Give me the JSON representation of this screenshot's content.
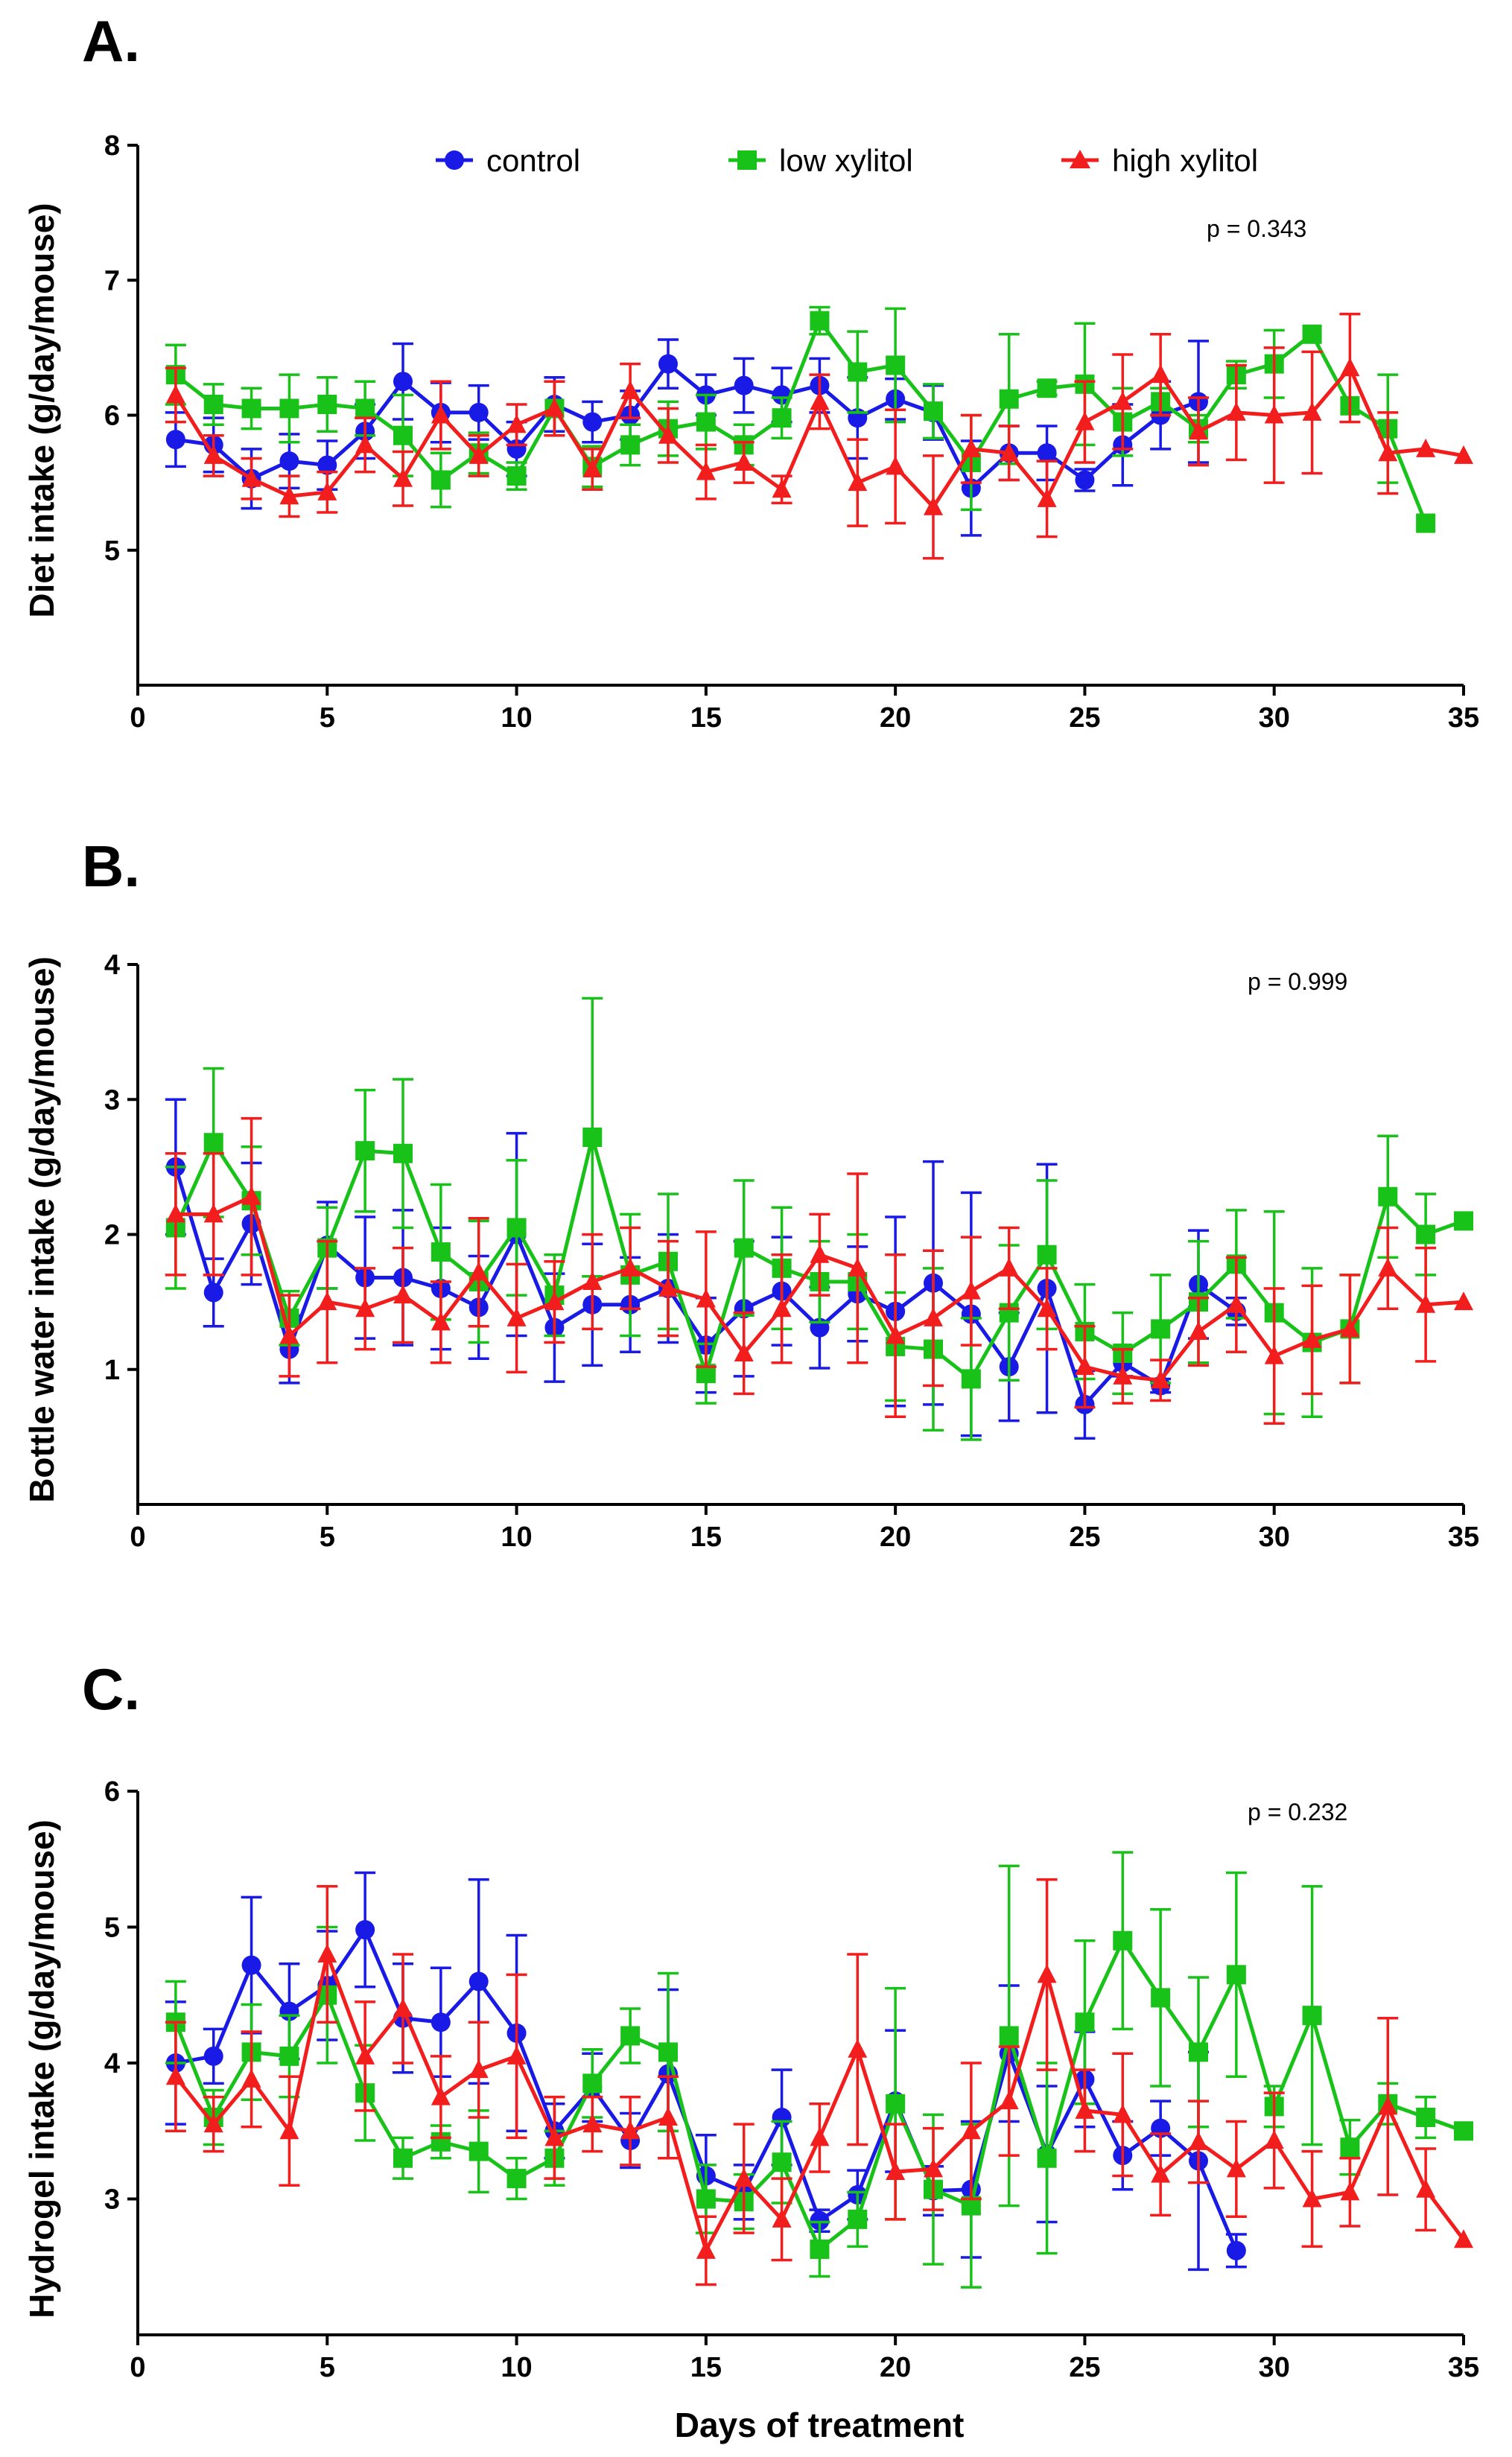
{
  "figure": {
    "xlabel": "Days of treatment",
    "xticks": [
      0,
      5,
      10,
      15,
      20,
      25,
      30,
      35
    ],
    "legend": [
      {
        "name": "control",
        "color": "#1a1ae6",
        "marker": "circle"
      },
      {
        "name": "low xylitol",
        "color": "#19c219",
        "marker": "square"
      },
      {
        "name": "high xylitol",
        "color": "#f21d1d",
        "marker": "triangle"
      }
    ]
  },
  "chart_data": [
    {
      "type": "line",
      "panel": "A.",
      "ylabel": "Diet intake (g/day/mouse)",
      "p_value": "p = 0.343",
      "xlim": [
        0,
        35
      ],
      "ylim": [
        4,
        8
      ],
      "yticks": [
        5,
        6,
        7,
        8
      ],
      "series": [
        {
          "name": "control",
          "x": [
            1,
            2,
            3,
            4,
            5,
            6,
            7,
            8,
            9,
            10,
            11,
            12,
            13,
            14,
            15,
            16,
            17,
            18,
            19,
            20,
            21,
            22,
            23,
            24,
            25,
            26,
            27,
            28
          ],
          "y": [
            5.82,
            5.78,
            5.53,
            5.66,
            5.63,
            5.88,
            6.25,
            6.02,
            6.02,
            5.75,
            6.08,
            5.95,
            6.0,
            6.38,
            6.15,
            6.22,
            6.15,
            6.22,
            5.98,
            6.12,
            6.02,
            5.46,
            5.72,
            5.72,
            5.52,
            5.78,
            6.0,
            6.1
          ],
          "err": [
            0.2,
            0.2,
            0.22,
            0.2,
            0.18,
            0.2,
            0.28,
            0.22,
            0.2,
            0.2,
            0.2,
            0.15,
            0.18,
            0.18,
            0.15,
            0.2,
            0.2,
            0.2,
            0.3,
            0.15,
            0.2,
            0.35,
            0.2,
            0.2,
            0.08,
            0.3,
            0.25,
            0.45
          ]
        },
        {
          "name": "low xylitol",
          "x": [
            1,
            2,
            3,
            4,
            5,
            6,
            7,
            8,
            9,
            10,
            11,
            12,
            13,
            14,
            15,
            16,
            17,
            18,
            19,
            20,
            21,
            22,
            23,
            24,
            25,
            26,
            27,
            28,
            29,
            30,
            31,
            32,
            33,
            34
          ],
          "y": [
            6.3,
            6.08,
            6.05,
            6.05,
            6.08,
            6.05,
            5.85,
            5.52,
            5.72,
            5.55,
            6.05,
            5.62,
            5.78,
            5.9,
            5.95,
            5.78,
            5.98,
            6.7,
            6.32,
            6.37,
            6.03,
            5.65,
            6.12,
            6.2,
            6.23,
            5.95,
            6.1,
            5.9,
            6.3,
            6.38,
            6.6,
            6.07,
            5.9,
            5.2
          ],
          "err": [
            0.22,
            0.15,
            0.15,
            0.25,
            0.2,
            0.2,
            0.3,
            0.2,
            0.15,
            0.1,
            0.2,
            0.15,
            0.15,
            0.2,
            0.2,
            0.15,
            0.15,
            0.1,
            0.3,
            0.42,
            0.2,
            0.35,
            0.48,
            0.05,
            0.45,
            0.25,
            0.1,
            0.1,
            0.1,
            0.25,
            0.0,
            0.0,
            0.4,
            0.0
          ]
        },
        {
          "name": "high xylitol",
          "x": [
            1,
            2,
            3,
            4,
            5,
            6,
            7,
            8,
            9,
            10,
            11,
            12,
            13,
            14,
            15,
            16,
            17,
            18,
            19,
            20,
            21,
            22,
            23,
            24,
            25,
            26,
            27,
            28,
            29,
            30,
            31,
            32,
            33,
            34,
            35
          ],
          "y": [
            6.15,
            5.7,
            5.53,
            5.4,
            5.43,
            5.78,
            5.53,
            6.0,
            5.7,
            5.93,
            6.05,
            5.6,
            6.18,
            5.85,
            5.58,
            5.65,
            5.45,
            6.1,
            5.5,
            5.62,
            5.32,
            5.75,
            5.72,
            5.38,
            5.95,
            6.1,
            6.3,
            5.88,
            6.02,
            6.0,
            6.02,
            6.35,
            5.72,
            5.75,
            5.7
          ],
          "err": [
            0.2,
            0.15,
            0.15,
            0.15,
            0.15,
            0.2,
            0.2,
            0.25,
            0.15,
            0.15,
            0.2,
            0.15,
            0.2,
            0.2,
            0.2,
            0.15,
            0.1,
            0.2,
            0.32,
            0.42,
            0.38,
            0.25,
            0.2,
            0.28,
            0.3,
            0.35,
            0.3,
            0.25,
            0.35,
            0.5,
            0.45,
            0.4,
            0.3,
            0.0,
            0.0
          ]
        }
      ]
    },
    {
      "type": "line",
      "panel": "B.",
      "ylabel": "Bottle water intake (g/day/mouse)",
      "p_value": "p = 0.999",
      "xlim": [
        0,
        35
      ],
      "ylim": [
        0,
        4
      ],
      "yticks": [
        1,
        2,
        3,
        4
      ],
      "series": [
        {
          "name": "control",
          "x": [
            1,
            2,
            3,
            4,
            5,
            6,
            7,
            8,
            9,
            10,
            11,
            12,
            13,
            14,
            15,
            16,
            17,
            18,
            19,
            20,
            21,
            22,
            23,
            24,
            25,
            26,
            27,
            28,
            29
          ],
          "y": [
            2.5,
            1.57,
            2.08,
            1.15,
            1.92,
            1.68,
            1.68,
            1.6,
            1.46,
            2.0,
            1.31,
            1.48,
            1.48,
            1.6,
            1.18,
            1.45,
            1.58,
            1.31,
            1.56,
            1.43,
            1.64,
            1.41,
            1.02,
            1.6,
            0.74,
            1.05,
            0.88,
            1.63,
            1.43
          ],
          "err": [
            0.5,
            0.25,
            0.45,
            0.25,
            0.32,
            0.45,
            0.5,
            0.45,
            0.38,
            0.75,
            0.4,
            0.45,
            0.35,
            0.4,
            0.35,
            0.5,
            0.4,
            0.3,
            0.35,
            0.7,
            0.9,
            0.9,
            0.4,
            0.92,
            0.25,
            0.1,
            0.05,
            0.4,
            0.1
          ]
        },
        {
          "name": "low xylitol",
          "x": [
            1,
            2,
            3,
            4,
            5,
            6,
            7,
            8,
            9,
            10,
            11,
            12,
            13,
            14,
            15,
            16,
            17,
            18,
            19,
            20,
            21,
            22,
            23,
            24,
            25,
            26,
            27,
            28,
            29,
            30,
            31,
            32,
            33,
            34,
            35
          ],
          "y": [
            2.05,
            2.68,
            2.25,
            1.38,
            1.9,
            2.62,
            2.6,
            1.87,
            1.65,
            2.05,
            1.55,
            2.72,
            1.7,
            1.8,
            0.97,
            1.9,
            1.75,
            1.65,
            1.65,
            1.17,
            1.15,
            0.93,
            1.42,
            1.85,
            1.28,
            1.12,
            1.3,
            1.5,
            1.78,
            1.42,
            1.2,
            1.3,
            2.28,
            2.0,
            2.1
          ],
          "err": [
            0.45,
            0.55,
            0.4,
            0.2,
            0.3,
            0.45,
            0.55,
            0.5,
            0.45,
            0.5,
            0.3,
            1.03,
            0.45,
            0.5,
            0.22,
            0.5,
            0.45,
            0.3,
            0.35,
            0.4,
            0.6,
            0.45,
            0.5,
            0.55,
            0.35,
            0.3,
            0.4,
            0.45,
            0.4,
            0.75,
            0.55,
            0.4,
            0.45,
            0.3,
            0.0
          ]
        },
        {
          "name": "high xylitol",
          "x": [
            1,
            2,
            3,
            4,
            5,
            6,
            7,
            8,
            9,
            10,
            11,
            12,
            13,
            14,
            15,
            16,
            17,
            18,
            19,
            20,
            21,
            22,
            23,
            24,
            25,
            26,
            27,
            28,
            29,
            30,
            31,
            32,
            33,
            34,
            35
          ],
          "y": [
            2.15,
            2.15,
            2.28,
            1.25,
            1.5,
            1.45,
            1.55,
            1.35,
            1.72,
            1.38,
            1.5,
            1.65,
            1.75,
            1.6,
            1.52,
            1.12,
            1.45,
            1.85,
            1.75,
            1.25,
            1.38,
            1.58,
            1.75,
            1.45,
            1.02,
            0.95,
            0.92,
            1.28,
            1.48,
            1.1,
            1.22,
            1.3,
            1.75,
            1.48,
            1.5
          ],
          "err": [
            0.45,
            0.45,
            0.58,
            0.3,
            0.45,
            0.3,
            0.35,
            0.3,
            0.4,
            0.4,
            0.3,
            0.35,
            0.3,
            0.35,
            0.5,
            0.3,
            0.4,
            0.3,
            0.7,
            0.6,
            0.5,
            0.4,
            0.3,
            0.3,
            0.3,
            0.2,
            0.15,
            0.25,
            0.35,
            0.5,
            0.4,
            0.4,
            0.3,
            0.42,
            0.0
          ]
        }
      ]
    },
    {
      "type": "line",
      "panel": "C.",
      "ylabel": "Hydrogel intake (g/day/mouse)",
      "p_value": "p = 0.232",
      "xlim": [
        0,
        35
      ],
      "ylim": [
        2,
        6
      ],
      "yticks": [
        3,
        4,
        5,
        6
      ],
      "series": [
        {
          "name": "control",
          "x": [
            1,
            2,
            3,
            4,
            5,
            6,
            7,
            8,
            9,
            10,
            11,
            12,
            13,
            14,
            15,
            16,
            17,
            18,
            19,
            20,
            21,
            22,
            23,
            24,
            25,
            26,
            27,
            28,
            29
          ],
          "y": [
            4.0,
            4.05,
            4.72,
            4.38,
            4.57,
            4.98,
            4.33,
            4.3,
            4.6,
            4.22,
            3.5,
            3.82,
            3.43,
            3.92,
            3.17,
            3.05,
            3.6,
            2.84,
            3.03,
            3.72,
            3.06,
            3.07,
            4.07,
            3.33,
            3.88,
            3.32,
            3.52,
            3.28,
            2.62
          ],
          "err": [
            0.45,
            0.2,
            0.5,
            0.35,
            0.4,
            0.42,
            0.4,
            0.4,
            0.75,
            0.72,
            0.2,
            0.25,
            0.2,
            0.62,
            0.3,
            0.2,
            0.35,
            0.08,
            0.18,
            0.52,
            0.18,
            0.5,
            0.5,
            0.5,
            0.35,
            0.25,
            0.2,
            0.8,
            0.12
          ]
        },
        {
          "name": "low xylitol",
          "x": [
            1,
            2,
            3,
            4,
            5,
            6,
            7,
            8,
            9,
            10,
            11,
            12,
            13,
            14,
            15,
            16,
            17,
            18,
            19,
            20,
            21,
            22,
            23,
            24,
            25,
            26,
            27,
            28,
            29,
            30,
            31,
            32,
            33,
            34,
            35
          ],
          "y": [
            4.3,
            3.6,
            4.08,
            4.05,
            4.5,
            3.78,
            3.3,
            3.42,
            3.35,
            3.15,
            3.3,
            3.85,
            4.2,
            4.08,
            3.0,
            2.98,
            3.27,
            2.63,
            2.85,
            3.7,
            3.07,
            2.95,
            4.2,
            3.3,
            4.3,
            4.9,
            4.48,
            4.08,
            4.65,
            3.68,
            4.35,
            3.38,
            3.7,
            3.6,
            3.5
          ],
          "err": [
            0.3,
            0.2,
            0.35,
            0.3,
            0.5,
            0.35,
            0.15,
            0.12,
            0.3,
            0.15,
            0.2,
            0.25,
            0.2,
            0.58,
            0.25,
            0.2,
            0.3,
            0.2,
            0.2,
            0.85,
            0.55,
            0.6,
            1.25,
            0.7,
            0.6,
            0.65,
            0.65,
            0.55,
            0.75,
            0.15,
            0.95,
            0.2,
            0.15,
            0.15,
            0.0
          ]
        },
        {
          "name": "high xylitol",
          "x": [
            1,
            2,
            3,
            4,
            5,
            6,
            7,
            8,
            9,
            10,
            11,
            12,
            13,
            14,
            15,
            16,
            17,
            18,
            19,
            20,
            21,
            22,
            23,
            24,
            25,
            26,
            27,
            28,
            29,
            30,
            31,
            32,
            33,
            34,
            35
          ],
          "y": [
            3.9,
            3.55,
            3.88,
            3.5,
            4.8,
            4.05,
            4.4,
            3.75,
            3.95,
            4.05,
            3.45,
            3.55,
            3.5,
            3.6,
            2.62,
            3.15,
            2.85,
            3.45,
            4.1,
            3.2,
            3.22,
            3.5,
            3.72,
            4.65,
            3.65,
            3.62,
            3.18,
            3.42,
            3.22,
            3.43,
            3.0,
            3.05,
            3.68,
            3.07,
            2.7
          ],
          "err": [
            0.4,
            0.2,
            0.35,
            0.4,
            0.5,
            0.4,
            0.4,
            0.3,
            0.35,
            0.6,
            0.3,
            0.2,
            0.25,
            0.3,
            0.25,
            0.4,
            0.3,
            0.25,
            0.7,
            0.35,
            0.3,
            0.5,
            0.4,
            0.7,
            0.3,
            0.45,
            0.3,
            0.3,
            0.35,
            0.35,
            0.35,
            0.25,
            0.65,
            0.3,
            0.0
          ]
        }
      ]
    }
  ]
}
